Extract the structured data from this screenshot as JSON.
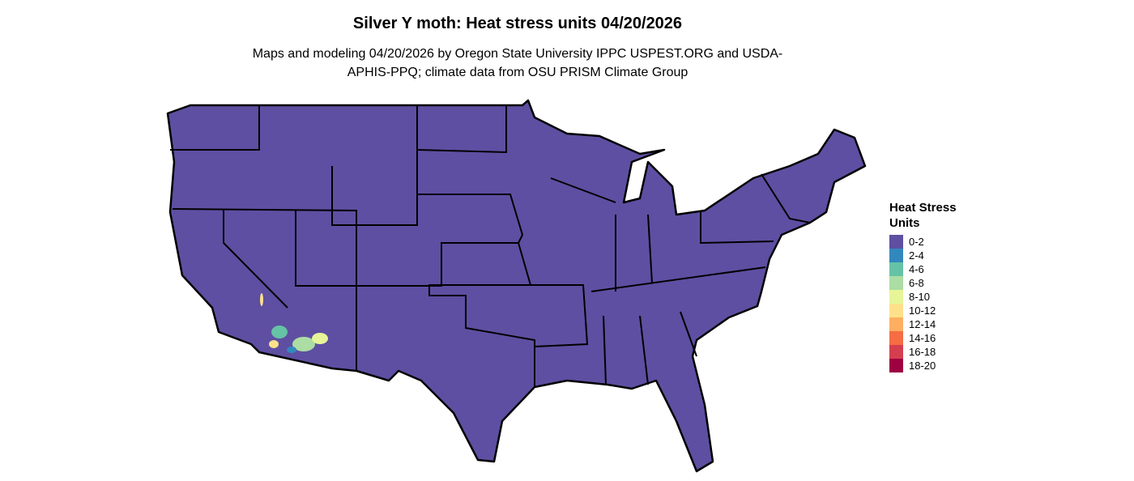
{
  "header": {
    "title": "Silver Y moth: Heat stress units 04/20/2026",
    "subtitle": "Maps and modeling 04/20/2026 by Oregon State University IPPC USPEST.ORG and USDA-APHIS-PPQ; climate data from OSU PRISM Climate Group"
  },
  "legend": {
    "title": "Heat Stress Units",
    "items": [
      {
        "label": "0-2",
        "color": "#5e4fa2"
      },
      {
        "label": "2-4",
        "color": "#3288bd"
      },
      {
        "label": "4-6",
        "color": "#66c2a5"
      },
      {
        "label": "6-8",
        "color": "#abdda4"
      },
      {
        "label": "8-10",
        "color": "#e6f598"
      },
      {
        "label": "10-12",
        "color": "#fee08b"
      },
      {
        "label": "12-14",
        "color": "#fdae61"
      },
      {
        "label": "14-16",
        "color": "#f46d43"
      },
      {
        "label": "16-18",
        "color": "#d53e4f"
      },
      {
        "label": "18-20",
        "color": "#9e0142"
      }
    ]
  }
}
